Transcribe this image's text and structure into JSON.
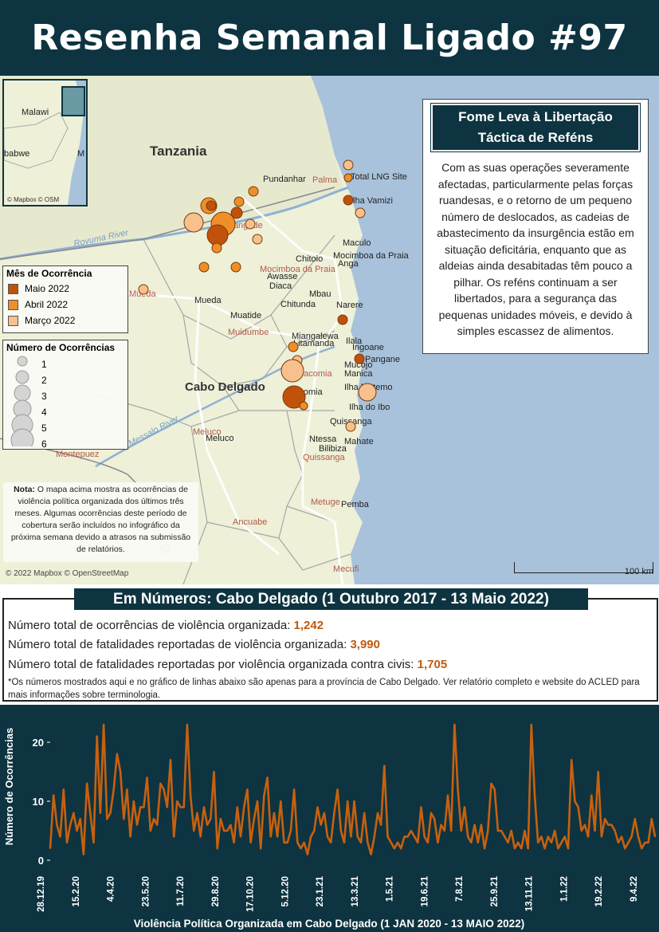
{
  "header": {
    "title": "Resenha Semanal Ligado #97"
  },
  "map": {
    "countries": {
      "tanzania": "Tanzania",
      "malawi": "Malawi",
      "zimbabwe_partial": "babwe",
      "m_partial": "M"
    },
    "inset_attribution": "© Mapbox © OSM",
    "main_attribution": "© 2022 Mapbox © OpenStreetMap",
    "scale_label": "100 km",
    "province_label": "Cabo Delgado",
    "rivers": [
      "Rovuma River",
      "Messalo River"
    ],
    "places": {
      "palma_dist": "Palma",
      "pundanhar": "Pundanhar",
      "total_lng": "Total LNG Site",
      "ilha_vamizi": "Ilha Vamizi",
      "nangade": "Nangade",
      "maculo": "Maculo",
      "mocimboa_city": "Mocimboa da Praia",
      "chitoio": "Chitoio",
      "anga": "Anga",
      "mocimboa_dist": "Mocimboa da Praia",
      "awasse": "Awasse",
      "diaca": "Diaca",
      "mbau": "Mbau",
      "mueda_dist": "Mueda",
      "mueda_city": "Mueda",
      "chitunda": "Chitunda",
      "narere": "Narere",
      "muatide": "Muatide",
      "muidumbe": "Muidumbe",
      "miangalewa": "Miangalewa",
      "litamanda": "Litamanda",
      "ilala": "Ilala",
      "ingoane": "Ingoane",
      "pangane": "Pangane",
      "mucojo": "Mucojo",
      "macomia_dist": "Macomia",
      "manica": "Manica",
      "ilha_matemo": "Ilha Matemo",
      "macomia_city": "Macomia",
      "ilha_ibo": "Ilha do Ibo",
      "quissanga_town": "Quissanga",
      "meluco_dist": "Meluco",
      "meluco_city": "Meluco",
      "ntessa": "Ntessa",
      "mahate": "Mahate",
      "bilibiza": "Bilibiza",
      "quissanga_dist": "Quissanga",
      "montepuez": "Montepuez",
      "metuge": "Metuge",
      "pemba": "Pemba",
      "ancuabe": "Ancuabe",
      "mecufi": "Mecufi",
      "balama_partial": "Balama"
    }
  },
  "legend_month": {
    "title": "Mês de Ocorrência",
    "items": [
      {
        "label": "Maio 2022",
        "color": "#c1520c"
      },
      {
        "label": "Abril 2022",
        "color": "#ee8f2a"
      },
      {
        "label": "Março 2022",
        "color": "#f7c08d"
      }
    ]
  },
  "legend_count": {
    "title": "Número de Ocorrências",
    "items": [
      "1",
      "2",
      "3",
      "4",
      "5",
      "6"
    ]
  },
  "note": {
    "label": "Nota:",
    "text": " O mapa acima mostra as ocorrências de violência política organizada dos últimos três meses. Algumas ocorrências deste período de cobertura serão incluídos no infográfico da próxima semana devido a atrasos na submissão de relatórios."
  },
  "story": {
    "title": "Fome Leva à Libertação Táctica de Reféns",
    "body": "Com as suas operações severamente afectadas, particularmente pelas forças ruandesas, e o retorno de um pequeno número de deslocados, as cadeias de abastecimento da insurgência estão em situação deficitária, enquanto que as aldeias ainda desabitadas têm pouco a pilhar. Os reféns continuam a ser libertados, para a segurança das pequenas unidades móveis, e devido à simples escassez de alimentos."
  },
  "numbers": {
    "title": "Em Números: Cabo Delgado (1 Outubro 2017 - 13 Maio 2022)",
    "rows": [
      {
        "label": "Número total de ocorrências de violência organizada: ",
        "value": "1,242"
      },
      {
        "label": "Número total de fatalidades reportadas de violência organizada: ",
        "value": "3,990"
      },
      {
        "label": "Número total de fatalidades reportadas por violência organizada contra civis: ",
        "value": "1,705"
      }
    ],
    "footnote": "*Os números mostrados aqui e no gráfico de linhas abaixo são apenas para a província de Cabo Delgado. Ver relatório completo e website do ACLED para mais informações sobre terminologia."
  },
  "chart_data": {
    "type": "line",
    "title": "Violência Política Organizada em Cabo Delgado (1 JAN 2020 - 13 MAIO 2022)",
    "ylabel": "Número de Ocorrências",
    "xlabel": "",
    "ylim": [
      0,
      25
    ],
    "yticks": [
      0,
      10,
      20
    ],
    "x_tick_labels": [
      "28.12.19",
      "15.2.20",
      "4.4.20",
      "23.5.20",
      "11.7.20",
      "29.8.20",
      "17.10.20",
      "5.12.20",
      "23.1.21",
      "13.3.21",
      "1.5.21",
      "19.6.21",
      "7.8.21",
      "25.9.21",
      "13.11.21",
      "1.1.22",
      "19.2.22",
      "9.4.22"
    ],
    "line_color": "#c8600f",
    "series": [
      {
        "values": [
          2,
          11,
          6,
          4,
          12,
          3,
          6,
          8,
          5,
          7,
          1,
          13,
          8,
          3,
          21,
          8,
          23,
          7,
          8,
          12,
          18,
          15,
          7,
          12,
          4,
          10,
          6,
          9,
          9,
          14,
          5,
          7,
          6,
          13,
          12,
          9,
          17,
          4,
          10,
          9,
          9,
          23,
          11,
          5,
          8,
          4,
          9,
          6,
          7,
          15,
          2,
          7,
          5,
          5,
          6,
          3,
          9,
          4,
          9,
          12,
          3,
          7,
          10,
          2,
          11,
          14,
          4,
          8,
          4,
          10,
          3,
          3,
          5,
          12,
          3,
          2,
          3,
          1,
          4,
          5,
          9,
          6,
          8,
          4,
          3,
          8,
          12,
          5,
          3,
          10,
          4,
          10,
          4,
          3,
          8,
          3,
          1,
          4,
          8,
          6,
          16,
          4,
          3,
          2,
          3,
          2,
          4,
          4,
          5,
          4,
          3,
          9,
          4,
          3,
          8,
          7,
          3,
          6,
          5,
          11,
          5,
          23,
          12,
          5,
          9,
          4,
          3,
          6,
          3,
          6,
          2,
          5,
          13,
          12,
          5,
          5,
          4,
          3,
          5,
          2,
          3,
          2,
          5,
          2,
          23,
          11,
          3,
          4,
          2,
          4,
          3,
          5,
          2,
          3,
          4,
          2,
          17,
          10,
          9,
          5,
          6,
          4,
          11,
          5,
          15,
          4,
          7,
          6,
          6,
          5,
          3,
          4,
          2,
          3,
          4,
          7,
          4,
          2,
          3,
          3,
          7,
          4
        ]
      }
    ]
  }
}
